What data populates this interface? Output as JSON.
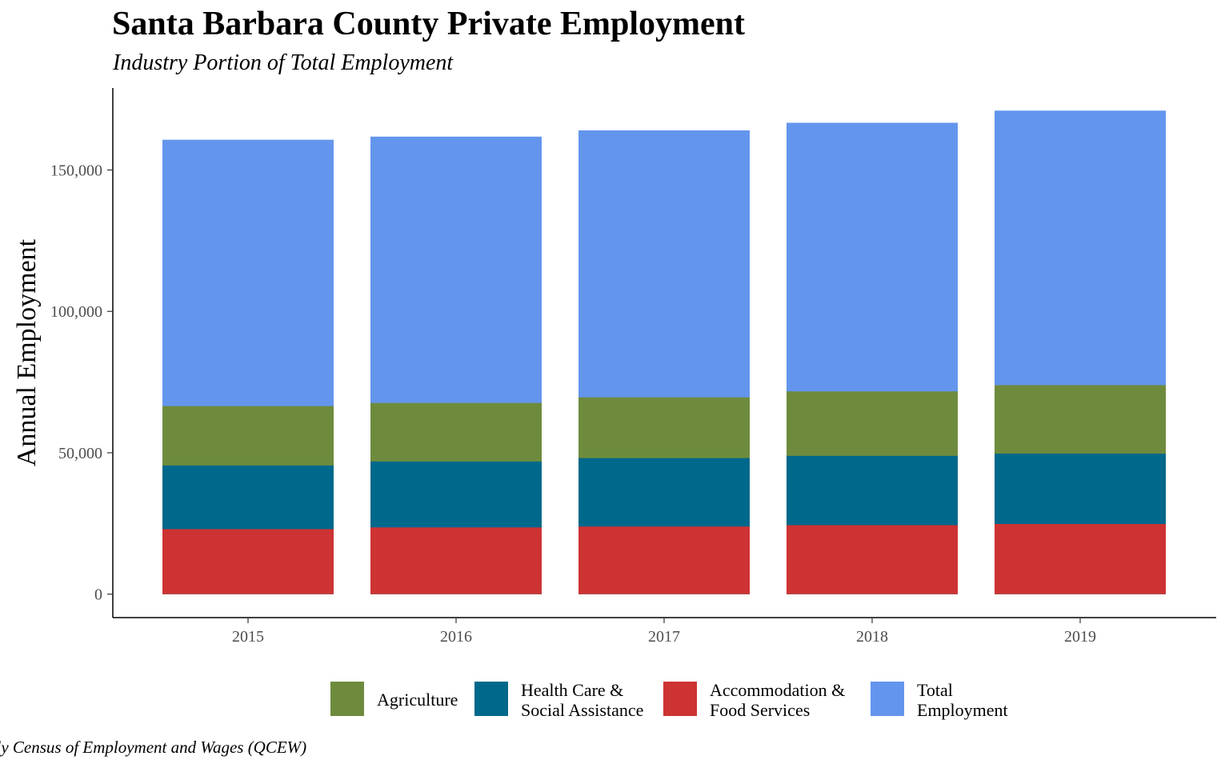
{
  "chart_data": {
    "type": "bar",
    "title": "Santa Barbara County Private Employment",
    "subtitle": "Industry Portion of Total Employment",
    "xlabel": "",
    "ylabel": "Annual Employment",
    "categories": [
      "2015",
      "2016",
      "2017",
      "2018",
      "2019"
    ],
    "ylim": [
      -8300,
      179000
    ],
    "yticks": [
      0,
      50000,
      100000,
      150000
    ],
    "ytick_labels": [
      "0",
      "50,000",
      "100,000",
      "150,000"
    ],
    "grid": false,
    "legend_position": "bottom",
    "series": [
      {
        "name": "Accommodation & Food Services",
        "label_lines": [
          "Accommodation &",
          "Food Services"
        ],
        "color": "#cd3333",
        "values": [
          23000,
          23600,
          23900,
          24400,
          24800
        ]
      },
      {
        "name": "Health Care & Social Assistance",
        "label_lines": [
          "Health Care &",
          "Social Assistance"
        ],
        "color": "#00688b",
        "values": [
          45500,
          46900,
          48100,
          48900,
          49700
        ]
      },
      {
        "name": "Agriculture",
        "label_lines": [
          "Agriculture"
        ],
        "color": "#6e8b3d",
        "values": [
          66500,
          67600,
          69600,
          71700,
          73900
        ]
      },
      {
        "name": "Total Employment",
        "label_lines": [
          "Total",
          "Employment"
        ],
        "color": "#6495ed",
        "values": [
          160700,
          161800,
          164000,
          166700,
          171000
        ]
      }
    ],
    "legend_order": [
      2,
      1,
      0,
      3
    ],
    "caption": "rterly Census of Employment and Wages (QCEW)"
  }
}
